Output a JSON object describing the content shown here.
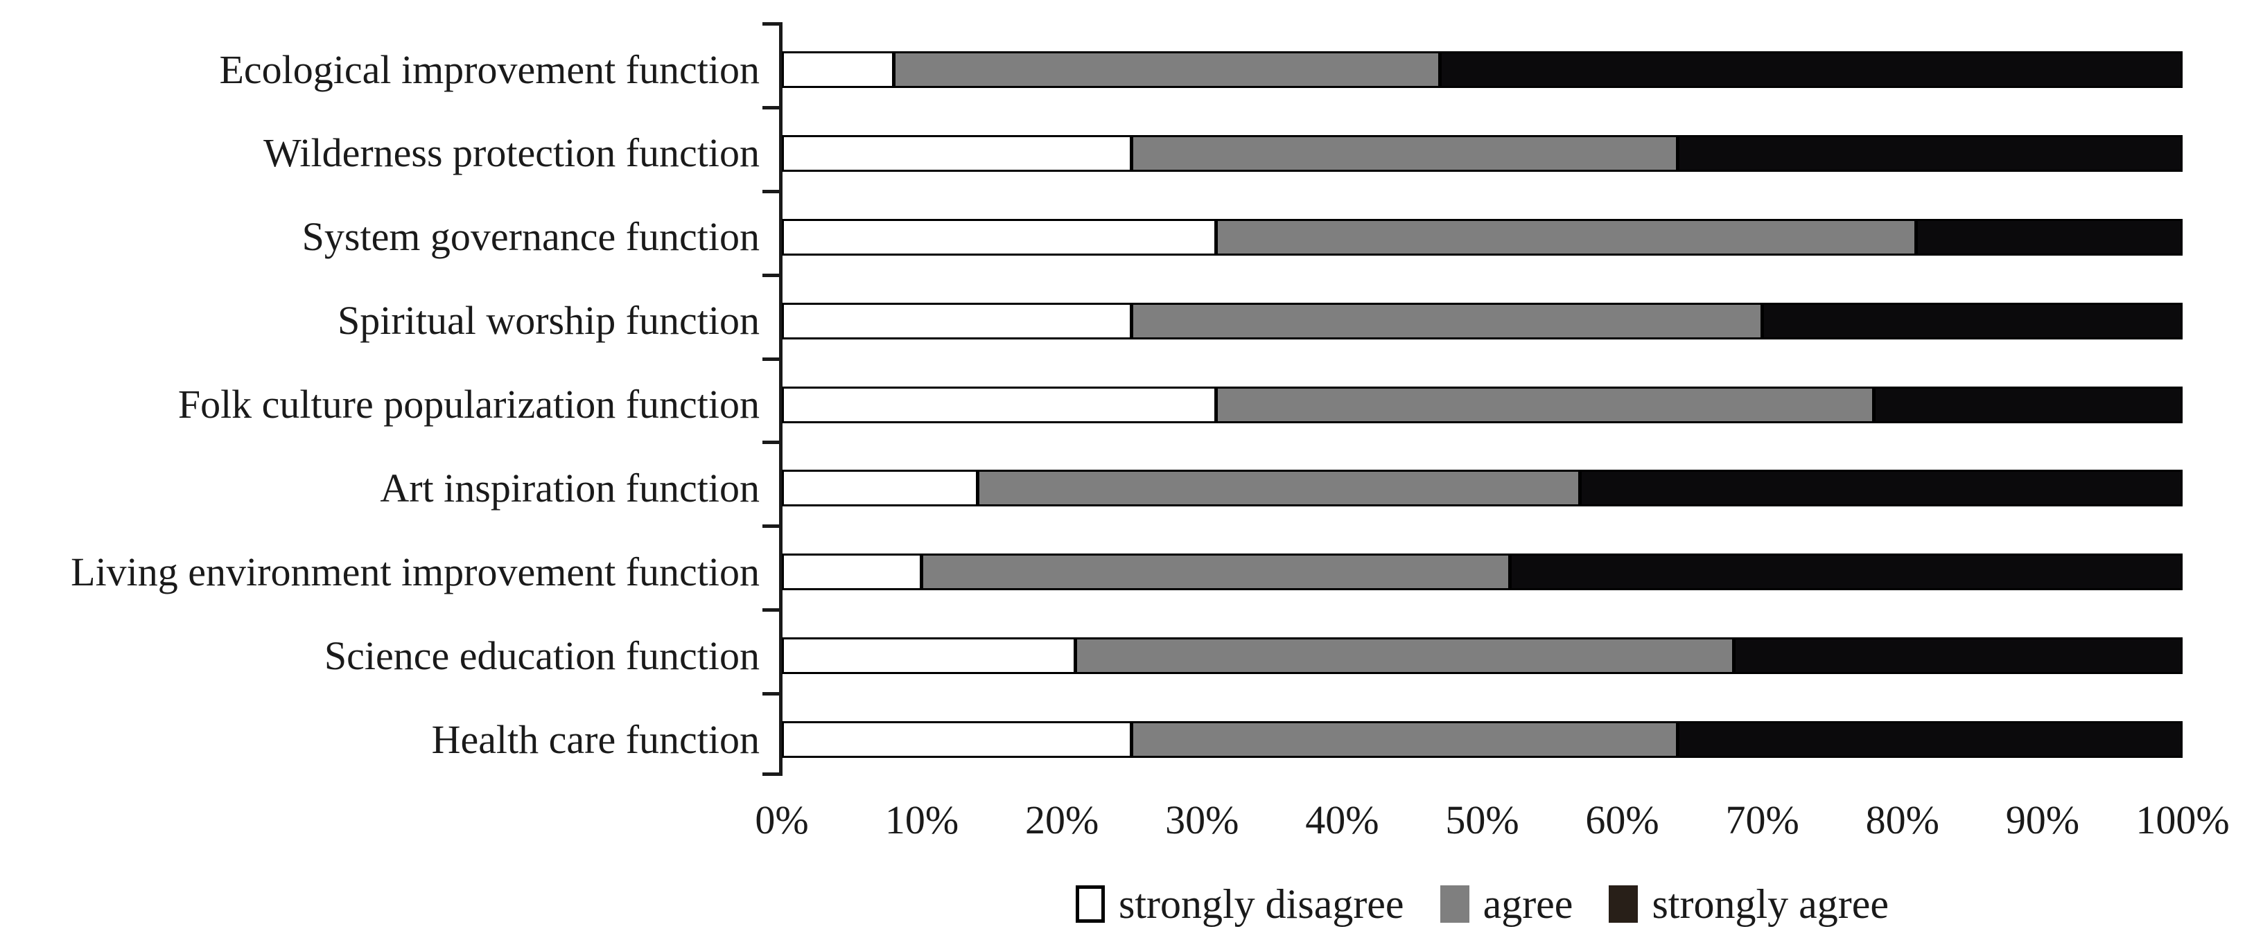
{
  "chart_data": {
    "type": "bar",
    "orientation": "horizontal-stacked",
    "title": "",
    "xlabel": "",
    "ylabel": "",
    "xlim": [
      0,
      100
    ],
    "grid": false,
    "legend_position": "bottom",
    "axis_color": "#1a1a1a",
    "bar_border_color": "#000000",
    "categories": [
      "Ecological improvement function",
      "Wilderness protection function",
      "System governance function",
      "Spiritual worship function",
      "Folk culture popularization function",
      "Art inspiration function",
      "Living environment improvement function",
      "Science education function",
      "Health care function"
    ],
    "series": [
      {
        "name": "strongly disagree",
        "color": "#ffffff",
        "legend_color": "#ffffff",
        "values": [
          8,
          25,
          31,
          25,
          31,
          14,
          10,
          21,
          25
        ]
      },
      {
        "name": "agree",
        "color": "#7f7f7f",
        "legend_color": "#7f7f7f",
        "values": [
          39,
          39,
          50,
          45,
          47,
          43,
          42,
          47,
          39
        ]
      },
      {
        "name": "strongly agree",
        "color": "#0b0a0c",
        "legend_color": "#281f18",
        "values": [
          53,
          36,
          19,
          30,
          22,
          43,
          48,
          32,
          36
        ]
      }
    ],
    "x_ticks": [
      "0%",
      "10%",
      "20%",
      "30%",
      "40%",
      "50%",
      "60%",
      "70%",
      "80%",
      "90%",
      "100%"
    ]
  }
}
